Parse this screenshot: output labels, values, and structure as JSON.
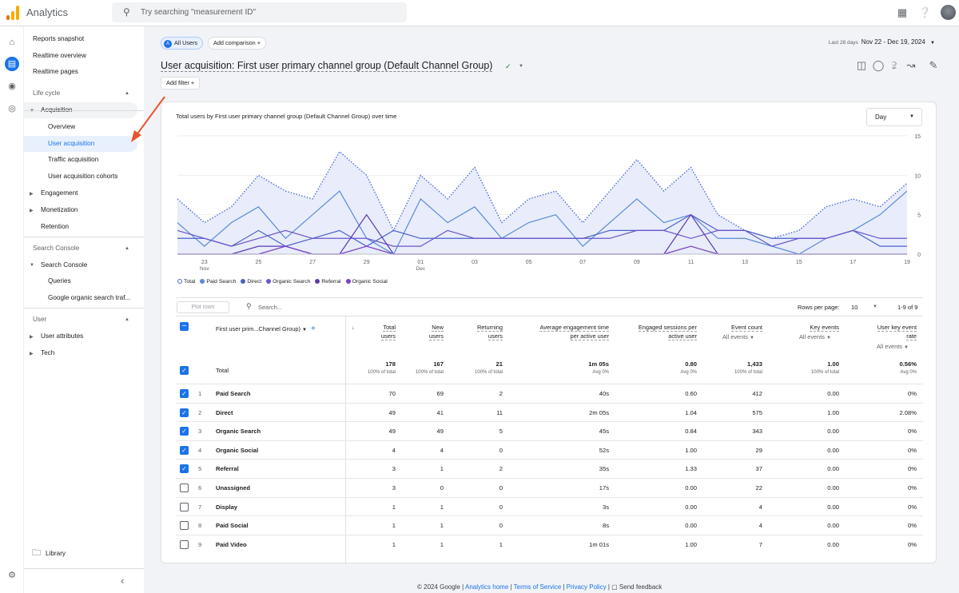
{
  "app": {
    "title": "Analytics",
    "search_placeholder": "Try searching \"measurement ID\""
  },
  "colors": {
    "accent": "#1a73e8",
    "total": "#4f6bd9",
    "paid_search": "#5b8ad8",
    "direct": "#4b61c9",
    "organic_search": "#6a55c9",
    "referral": "#5a3bb0",
    "organic_social": "#7b3fc4"
  },
  "sidebar": {
    "top": [
      "Reports snapshot",
      "Realtime overview",
      "Realtime pages"
    ],
    "lifecycle": "Life cycle",
    "acquisition": "Acquisition",
    "acq_items": [
      "Overview",
      "User acquisition",
      "Traffic acquisition",
      "User acquisition cohorts"
    ],
    "lifecycle_rest": [
      "Engagement",
      "Monetization",
      "Retention"
    ],
    "search_console_section": "Search Console",
    "search_console": "Search Console",
    "sc_items": [
      "Queries",
      "Google organic search traf..."
    ],
    "user_section": "User",
    "user_items": [
      "User attributes",
      "Tech"
    ],
    "library": "Library"
  },
  "header": {
    "all_users_avatar": "A",
    "all_users": "All Users",
    "add_comparison": "Add comparison",
    "date_label": "Last 28 days",
    "date_range": "Nov 22 - Dec 19, 2024",
    "title": "User acquisition: First user primary channel group (Default Channel Group)",
    "add_filter": "Add filter"
  },
  "chart": {
    "title": "Total users by First user primary channel group (Default Channel Group) over time",
    "granularity": "Day",
    "x_ticks": [
      "23",
      "25",
      "27",
      "29",
      "01",
      "03",
      "05",
      "07",
      "09",
      "11",
      "13",
      "15",
      "17",
      "19"
    ],
    "x_subticks": {
      "23": "Nov",
      "01": "Dec"
    },
    "y_ticks": [
      "15",
      "10",
      "5",
      "0"
    ],
    "legend": [
      "Total",
      "Paid Search",
      "Direct",
      "Organic Search",
      "Referral",
      "Organic Social"
    ]
  },
  "chart_data": {
    "type": "line",
    "x": [
      "Nov 22",
      "Nov 23",
      "Nov 24",
      "Nov 25",
      "Nov 26",
      "Nov 27",
      "Nov 28",
      "Nov 29",
      "Nov 30",
      "Dec 01",
      "Dec 02",
      "Dec 03",
      "Dec 04",
      "Dec 05",
      "Dec 06",
      "Dec 07",
      "Dec 08",
      "Dec 09",
      "Dec 10",
      "Dec 11",
      "Dec 12",
      "Dec 13",
      "Dec 14",
      "Dec 15",
      "Dec 16",
      "Dec 17",
      "Dec 18",
      "Dec 19"
    ],
    "ylim": [
      0,
      15
    ],
    "series": [
      {
        "name": "Total",
        "values": [
          7,
          4,
          6,
          10,
          8,
          7,
          13,
          10,
          3,
          10,
          7,
          11,
          4,
          7,
          8,
          4,
          8,
          12,
          8,
          11,
          5,
          3,
          2,
          3,
          6,
          7,
          6,
          9
        ]
      },
      {
        "name": "Paid Search",
        "values": [
          4,
          1,
          4,
          6,
          2,
          5,
          8,
          2,
          0,
          7,
          4,
          6,
          2,
          4,
          5,
          1,
          4,
          7,
          4,
          5,
          2,
          2,
          1,
          0,
          2,
          3,
          5,
          8
        ]
      },
      {
        "name": "Direct",
        "values": [
          2,
          2,
          1,
          3,
          1,
          2,
          3,
          1,
          3,
          2,
          2,
          2,
          2,
          2,
          2,
          2,
          3,
          3,
          3,
          5,
          3,
          3,
          2,
          2,
          2,
          3,
          1,
          1
        ]
      },
      {
        "name": "Organic Search",
        "values": [
          3,
          2,
          1,
          2,
          3,
          2,
          2,
          2,
          1,
          1,
          3,
          2,
          2,
          2,
          2,
          2,
          2,
          3,
          3,
          2,
          3,
          3,
          1,
          2,
          2,
          3,
          2,
          2
        ]
      },
      {
        "name": "Referral",
        "values": [
          0,
          0,
          0,
          1,
          1,
          0,
          0,
          5,
          0,
          0,
          0,
          0,
          0,
          0,
          0,
          0,
          0,
          0,
          0,
          5,
          0,
          0,
          0,
          0,
          0,
          0,
          0,
          0
        ]
      },
      {
        "name": "Organic Social",
        "values": [
          0,
          0,
          0,
          0,
          1,
          0,
          0,
          1,
          0,
          0,
          0,
          0,
          0,
          0,
          0,
          0,
          0,
          0,
          0,
          1,
          0,
          0,
          0,
          0,
          0,
          0,
          0,
          0
        ]
      }
    ]
  },
  "table": {
    "search_placeholder": "Search...",
    "plot_rows": "Plot rows",
    "rows_per_page_label": "Rows per page:",
    "rows_per_page": "10",
    "pagination": "1-9 of 9",
    "dim_header": "First user prim...Channel Group)",
    "headers": [
      [
        "Total",
        "users"
      ],
      [
        "New",
        "users"
      ],
      [
        "Returning",
        "users"
      ],
      [
        "Average engagement time",
        "per active user"
      ],
      [
        "Engaged sessions per",
        "active user"
      ],
      [
        "Event count",
        ""
      ],
      [
        "Key events",
        ""
      ],
      [
        "User key event",
        "rate"
      ]
    ],
    "all_events": "All events",
    "total": {
      "label": "Total",
      "values": [
        "178",
        "167",
        "21",
        "1m 05s",
        "0.80",
        "1,433",
        "1.00",
        "0.56%"
      ],
      "subs": [
        "100% of total",
        "100% of total",
        "100% of total",
        "Avg 0%",
        "Avg 0%",
        "100% of total",
        "100% of total",
        "Avg 0%"
      ]
    },
    "rows": [
      {
        "n": "1",
        "name": "Paid Search",
        "checked": true,
        "v": [
          "70",
          "69",
          "2",
          "40s",
          "0.60",
          "412",
          "0.00",
          "0%"
        ]
      },
      {
        "n": "2",
        "name": "Direct",
        "checked": true,
        "v": [
          "49",
          "41",
          "11",
          "2m 05s",
          "1.04",
          "575",
          "1.00",
          "2.08%"
        ]
      },
      {
        "n": "3",
        "name": "Organic Search",
        "checked": true,
        "v": [
          "49",
          "49",
          "5",
          "45s",
          "0.84",
          "343",
          "0.00",
          "0%"
        ]
      },
      {
        "n": "4",
        "name": "Organic Social",
        "checked": true,
        "v": [
          "4",
          "4",
          "0",
          "52s",
          "1.00",
          "29",
          "0.00",
          "0%"
        ]
      },
      {
        "n": "5",
        "name": "Referral",
        "checked": true,
        "v": [
          "3",
          "1",
          "2",
          "35s",
          "1.33",
          "37",
          "0.00",
          "0%"
        ]
      },
      {
        "n": "6",
        "name": "Unassigned",
        "checked": false,
        "v": [
          "3",
          "0",
          "0",
          "17s",
          "0.00",
          "22",
          "0.00",
          "0%"
        ]
      },
      {
        "n": "7",
        "name": "Display",
        "checked": false,
        "v": [
          "1",
          "1",
          "0",
          "3s",
          "0.00",
          "4",
          "0.00",
          "0%"
        ]
      },
      {
        "n": "8",
        "name": "Paid Social",
        "checked": false,
        "v": [
          "1",
          "1",
          "0",
          "8s",
          "0.00",
          "4",
          "0.00",
          "0%"
        ]
      },
      {
        "n": "9",
        "name": "Paid Video",
        "checked": false,
        "v": [
          "1",
          "1",
          "1",
          "1m 01s",
          "1.00",
          "7",
          "0.00",
          "0%"
        ]
      }
    ]
  },
  "footer": {
    "copyright": "© 2024 Google |",
    "home": "Analytics home",
    "sep1": "|",
    "terms": "Terms of Service",
    "sep2": "|",
    "privacy": "Privacy Policy",
    "sep3": "|",
    "feedback": "Send feedback"
  }
}
